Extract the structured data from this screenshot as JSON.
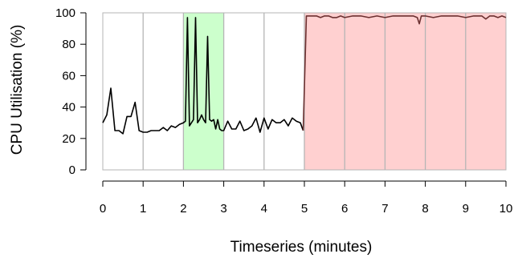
{
  "chart_data": {
    "type": "line",
    "title": "",
    "xlabel": "Timeseries (minutes)",
    "ylabel": "CPU Utilisation (%)",
    "xlim": [
      0,
      10
    ],
    "ylim": [
      0,
      100
    ],
    "x_ticks": [
      0,
      1,
      2,
      3,
      4,
      5,
      6,
      7,
      8,
      9,
      10
    ],
    "y_ticks": [
      0,
      20,
      40,
      60,
      80,
      100
    ],
    "grid": "vertical lines at each minute",
    "legend": "none",
    "shaded_regions": [
      {
        "x_start": 2,
        "x_end": 3,
        "color": "#ccffcc"
      },
      {
        "x_start": 5,
        "x_end": 10,
        "color": "#ffd0d0"
      }
    ],
    "series": [
      {
        "color": "#000000",
        "x": [
          0.0,
          0.1,
          0.2,
          0.3,
          0.4,
          0.5,
          0.6,
          0.7,
          0.8,
          0.9,
          1.0,
          1.1,
          1.2,
          1.3,
          1.4,
          1.5,
          1.6,
          1.7,
          1.8,
          1.9,
          2.0,
          2.05,
          2.1,
          2.15,
          2.2,
          2.25,
          2.3,
          2.35,
          2.4,
          2.45,
          2.5,
          2.55,
          2.6,
          2.65,
          2.7,
          2.75,
          2.8,
          2.85,
          2.9,
          2.95,
          3.0,
          3.1,
          3.2,
          3.3,
          3.4,
          3.5,
          3.6,
          3.7,
          3.8,
          3.9,
          4.0,
          4.1,
          4.2,
          4.3,
          4.4,
          4.5,
          4.6,
          4.7,
          4.8,
          4.9,
          4.97
        ],
        "values": [
          30,
          35,
          52,
          25,
          25,
          23,
          34,
          34,
          43,
          25,
          24,
          24,
          25,
          25,
          25,
          27,
          25,
          28,
          27,
          29,
          30,
          31,
          97,
          28,
          30,
          32,
          97,
          30,
          32,
          35,
          32,
          30,
          85,
          32,
          31,
          32,
          26,
          32,
          26,
          25,
          25,
          31,
          26,
          26,
          31,
          25,
          26,
          28,
          33,
          24,
          33,
          26,
          32,
          30,
          30,
          32,
          28,
          33,
          31,
          30,
          25
        ]
      },
      {
        "color": "#6b3030",
        "x": [
          4.97,
          5.05,
          5.2,
          5.3,
          5.4,
          5.5,
          5.6,
          5.7,
          5.8,
          5.9,
          6.0,
          6.2,
          6.4,
          6.6,
          6.8,
          7.0,
          7.2,
          7.4,
          7.6,
          7.7,
          7.8,
          7.85,
          7.9,
          8.0,
          8.2,
          8.4,
          8.6,
          8.8,
          9.0,
          9.2,
          9.4,
          9.5,
          9.6,
          9.7,
          9.8,
          9.9,
          10.0
        ],
        "values": [
          25,
          98,
          98,
          98,
          97,
          98,
          98,
          97,
          97,
          98,
          97,
          98,
          98,
          97,
          98,
          97,
          98,
          98,
          98,
          98,
          97,
          93,
          98,
          98,
          97,
          98,
          98,
          98,
          97,
          98,
          98,
          96,
          98,
          98,
          97,
          98,
          97
        ]
      }
    ]
  }
}
